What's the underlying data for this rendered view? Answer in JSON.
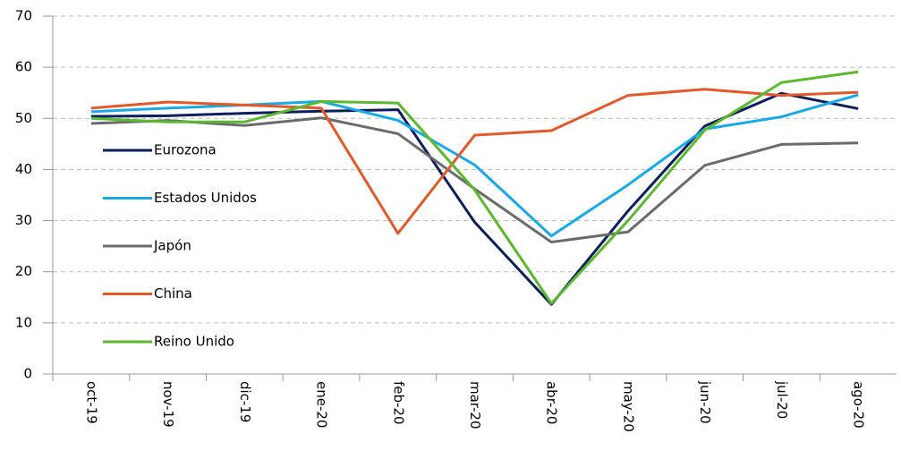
{
  "chart_data": {
    "type": "line",
    "categories": [
      "oct-19",
      "nov-19",
      "dic-19",
      "ene-20",
      "feb-20",
      "mar-20",
      "abr-20",
      "may-20",
      "jun-20",
      "jul-20",
      "ago-20"
    ],
    "series": [
      {
        "name": "Eurozona",
        "color": "#0b1f5c",
        "values": [
          50.4,
          50.5,
          51.0,
          51.4,
          51.7,
          29.7,
          13.6,
          31.9,
          48.5,
          54.9,
          51.9
        ]
      },
      {
        "name": "Estados Unidos",
        "color": "#18a9e6",
        "values": [
          51.3,
          52.0,
          52.6,
          53.3,
          49.6,
          40.9,
          27.0,
          37.0,
          47.9,
          50.3,
          54.6
        ]
      },
      {
        "name": "Japón",
        "color": "#6b6b6b",
        "values": [
          49.0,
          49.6,
          48.6,
          50.1,
          47.0,
          36.2,
          25.8,
          27.8,
          40.8,
          44.9,
          45.2
        ]
      },
      {
        "name": "China",
        "color": "#e2592a",
        "values": [
          52.0,
          53.2,
          52.6,
          52.0,
          27.5,
          46.7,
          47.6,
          54.5,
          55.7,
          54.5,
          55.1
        ]
      },
      {
        "name": "Reino Unido",
        "color": "#5cb82e",
        "values": [
          50.0,
          49.3,
          49.3,
          53.3,
          53.0,
          36.0,
          13.8,
          30.0,
          47.7,
          57.0,
          59.1
        ]
      }
    ],
    "ylim": [
      0,
      70
    ],
    "yticks": [
      0,
      10,
      20,
      30,
      40,
      50,
      60,
      70
    ],
    "grid": true,
    "legend": "left"
  }
}
